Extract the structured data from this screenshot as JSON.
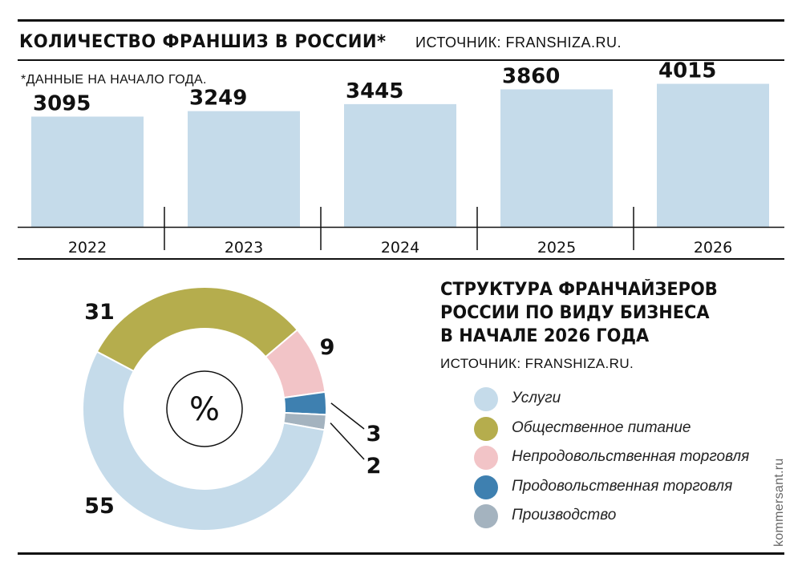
{
  "header": {
    "title": "КОЛИЧЕСТВО ФРАНШИЗ В РОССИИ*",
    "source": "ИСТОЧНИК: FRANSHIZA.RU.",
    "footnote": "*ДАННЫЕ НА НАЧАЛО ГОДА."
  },
  "bar_section": {
    "bar_color": "#c5dbea"
  },
  "donut_section": {
    "title_lines": [
      "СТРУКТУРА ФРАНЧАЙЗЕРОВ",
      "РОССИИ ПО ВИДУ БИЗНЕСА",
      "В НАЧАЛЕ 2026 ГОДА"
    ],
    "source": "ИСТОЧНИК: FRANSHIZA.RU.",
    "center_label": "%"
  },
  "watermark": "kommersant.ru",
  "chart_data": [
    {
      "type": "bar",
      "title": "КОЛИЧЕСТВО ФРАНШИЗ В РОССИИ*",
      "categories": [
        "2022",
        "2023",
        "2024",
        "2025",
        "2026"
      ],
      "values": [
        3095,
        3249,
        3445,
        3860,
        4015
      ],
      "data_labels": [
        "3095",
        "3249",
        "3445",
        "3860",
        "4015"
      ],
      "ylim": [
        0,
        4500
      ],
      "grid": false
    },
    {
      "type": "pie",
      "variant": "donut",
      "title": "СТРУКТУРА ФРАНЧАЙЗЕРОВ РОССИИ ПО ВИДУ БИЗНЕСА В НАЧАЛЕ 2026 ГОДА",
      "unit": "%",
      "legend_position": "right",
      "slices": [
        {
          "name": "Услуги",
          "value": 55,
          "label": "55",
          "color": "#c5dbea"
        },
        {
          "name": "Общественное питание",
          "value": 31,
          "label": "31",
          "color": "#b5ad4d"
        },
        {
          "name": "Непродовольственная торговля",
          "value": 9,
          "label": "9",
          "color": "#f2c4c7"
        },
        {
          "name": "Продовольственная торговля",
          "value": 3,
          "label": "3",
          "color": "#3e80b0"
        },
        {
          "name": "Производство",
          "value": 2,
          "label": "2",
          "color": "#a4b3bf"
        }
      ]
    }
  ]
}
